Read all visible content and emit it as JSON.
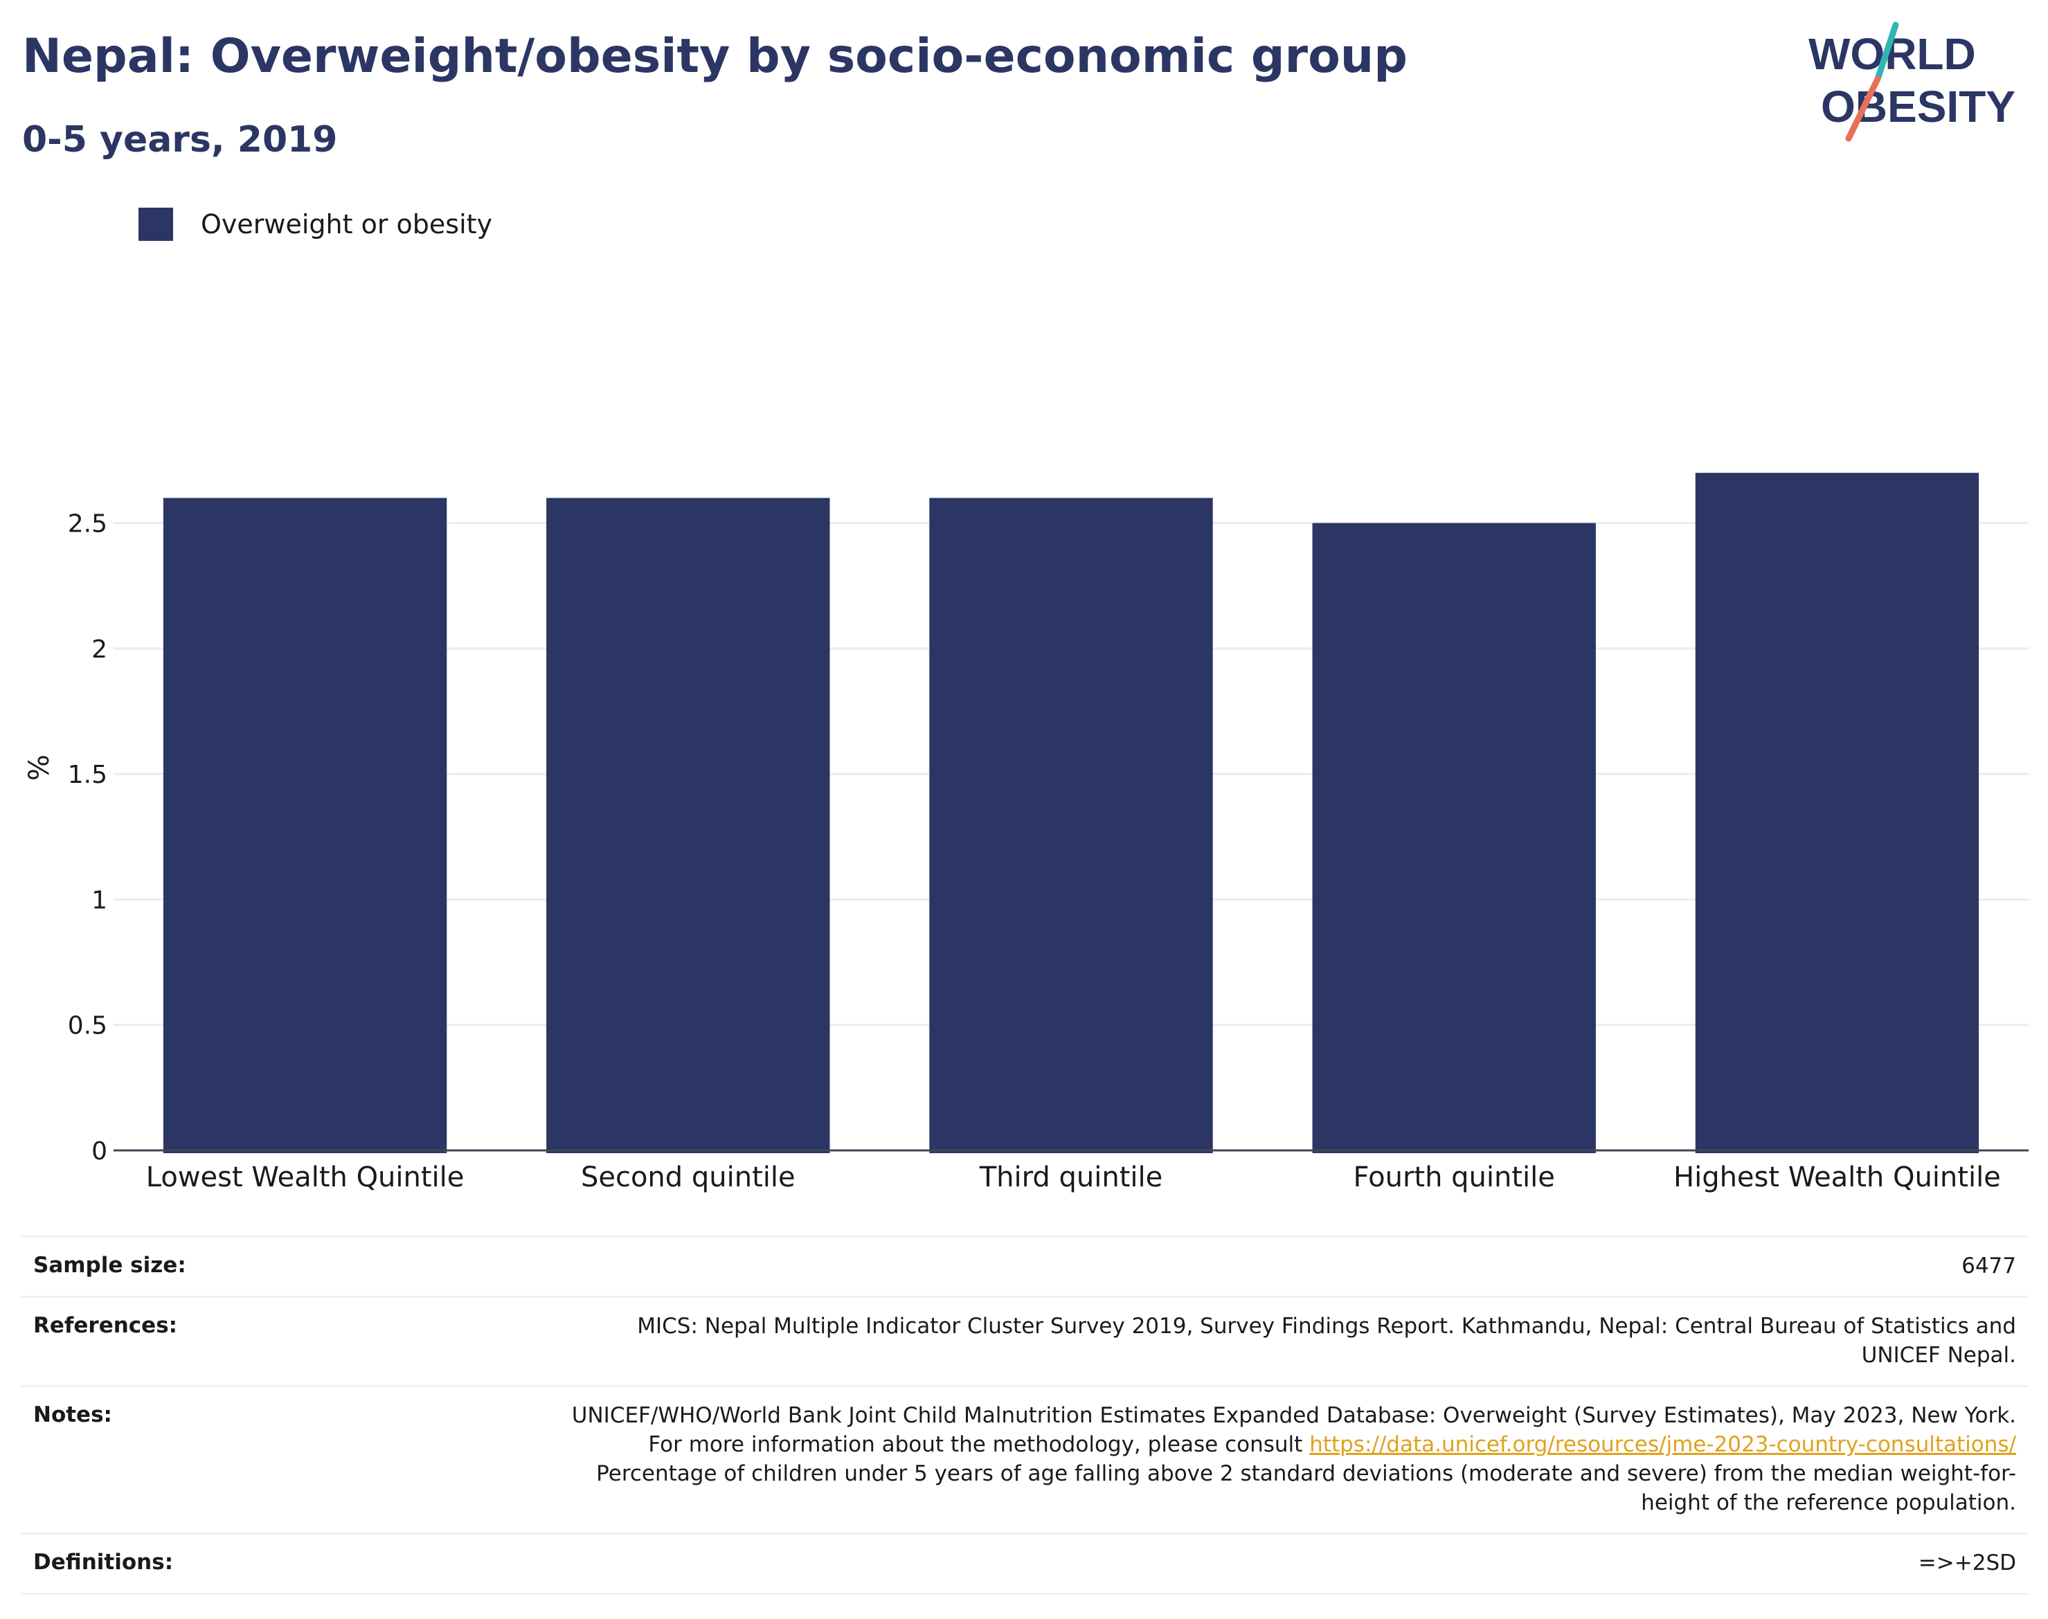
{
  "header": {
    "title": "Nepal: Overweight/obesity by socio-economic group",
    "subtitle": "0-5 years, 2019"
  },
  "logo": {
    "line1": "WORLD",
    "line2": "OBESITY",
    "colors": {
      "navy": "#2b3664",
      "teal": "#2fb6b2",
      "coral": "#e8705a"
    }
  },
  "legend": {
    "label": "Overweight or obesity",
    "color": "#2b3664"
  },
  "chart_data": {
    "type": "bar",
    "categories": [
      "Lowest Wealth Quintile",
      "Second quintile",
      "Third quintile",
      "Fourth quintile",
      "Highest Wealth Quintile"
    ],
    "series": [
      {
        "name": "Overweight or obesity",
        "values": [
          2.6,
          2.6,
          2.6,
          2.5,
          2.7
        ]
      }
    ],
    "ylabel": "%",
    "ylim": [
      0,
      3.15
    ],
    "yticks": [
      0,
      0.5,
      1,
      1.5,
      2,
      2.5
    ],
    "ytick_labels": [
      "0",
      "0.5",
      "1",
      "1.5",
      "2",
      "2.5"
    ],
    "grid": true,
    "legend_position": "top-left",
    "bar_color": "#2b3664"
  },
  "info": {
    "sample_size_label": "Sample size:",
    "sample_size_value": "6477",
    "references_label": "References:",
    "references_value": "MICS: Nepal Multiple Indicator Cluster Survey 2019, Survey Findings Report. Kathmandu, Nepal: Central Bureau of Statistics and UNICEF Nepal.",
    "notes_label": "Notes:",
    "notes_text_before": "UNICEF/WHO/World Bank Joint Child Malnutrition Estimates Expanded Database: Overweight (Survey Estimates), May 2023, New York. For more information about the methodology, please consult ",
    "notes_link": "https://data.unicef.org/resources/jme-2023-country-consultations/",
    "notes_text_after": " Percentage of children under 5 years of age falling above 2 standard deviations (moderate and severe) from the median weight-for-height of the reference population.",
    "definitions_label": "Definitions:",
    "definitions_value": "=>+2SD",
    "link_color": "#e0a21c"
  }
}
